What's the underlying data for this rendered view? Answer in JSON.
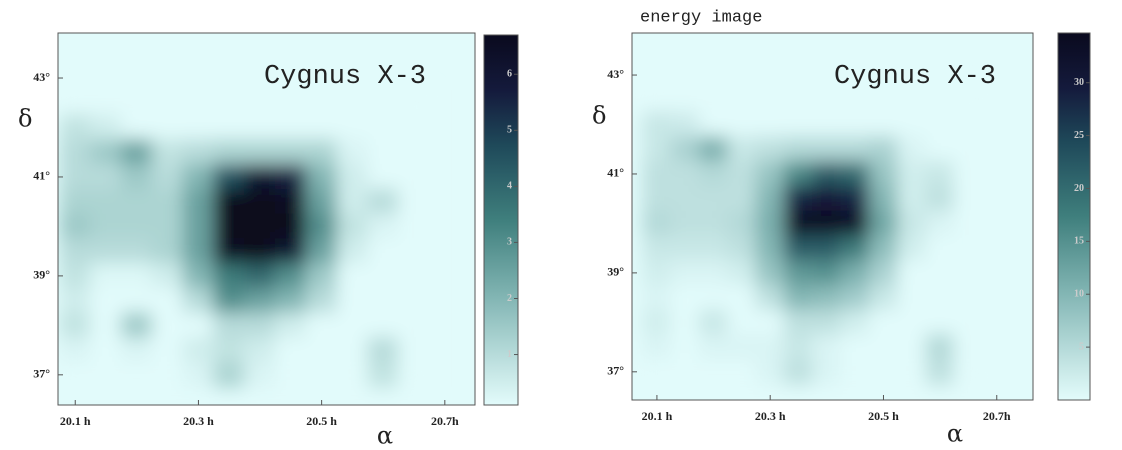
{
  "chart_data": [
    {
      "type": "heatmap",
      "annotation": "Cygnus X-3",
      "xlabel": "α",
      "ylabel": "δ",
      "x": [
        20.1,
        20.15,
        20.2,
        20.25,
        20.3,
        20.35,
        20.4,
        20.45,
        20.5,
        20.55,
        20.6,
        20.65
      ],
      "y": [
        42.5,
        42,
        41.5,
        41,
        40.5,
        40,
        39.5,
        39,
        38.5,
        38,
        37.5,
        37
      ],
      "values": [
        [
          0,
          0,
          0,
          0,
          0,
          0,
          0,
          0,
          0,
          0,
          0,
          0
        ],
        [
          0.8,
          0.5,
          0,
          0,
          0,
          0,
          0,
          0,
          0,
          0,
          0,
          0
        ],
        [
          1,
          1.5,
          2.5,
          0.8,
          1,
          1.2,
          1.2,
          1.2,
          1.2,
          0.3,
          0,
          0
        ],
        [
          1,
          1,
          1.5,
          1,
          2,
          4.5,
          6,
          5.5,
          2,
          0.5,
          0,
          0
        ],
        [
          1.2,
          1.2,
          1.2,
          1.2,
          2.5,
          7,
          7,
          6.5,
          2.5,
          0.5,
          1,
          0
        ],
        [
          1.5,
          1.2,
          1.2,
          1.2,
          2.5,
          7,
          7,
          7,
          3,
          0.8,
          0.3,
          0
        ],
        [
          1,
          1,
          1,
          1.2,
          2.5,
          6.5,
          7,
          6,
          2.5,
          0.5,
          0,
          0
        ],
        [
          0.8,
          0.2,
          0.2,
          0.5,
          2,
          3.5,
          4,
          3,
          1.5,
          0,
          0,
          0
        ],
        [
          0.5,
          0,
          0,
          0,
          1,
          3,
          2.5,
          2,
          1,
          0,
          0,
          0
        ],
        [
          0.8,
          0,
          1.5,
          0,
          0,
          1,
          1,
          0.5,
          0,
          0,
          0,
          0
        ],
        [
          0.3,
          0,
          0.3,
          0,
          0.5,
          0.8,
          0.5,
          0,
          0,
          0,
          1,
          0
        ],
        [
          0,
          0,
          0,
          0,
          0.3,
          1.2,
          0.3,
          0,
          0,
          0,
          0.8,
          0
        ]
      ],
      "xlim": [
        20.072,
        20.749
      ],
      "ylim": [
        36.39,
        43.91
      ],
      "xticks": [
        {
          "value": 20.1,
          "label": "20.1 h"
        },
        {
          "value": 20.3,
          "label": "20.3 h"
        },
        {
          "value": 20.5,
          "label": "20.5 h"
        },
        {
          "value": 20.7,
          "label": "20.7h"
        }
      ],
      "yticks": [
        {
          "value": 37,
          "label": "37°"
        },
        {
          "value": 39,
          "label": "39°"
        },
        {
          "value": 41,
          "label": "41°"
        },
        {
          "value": 43,
          "label": "43°"
        }
      ],
      "clim": [
        0.1,
        6.7
      ],
      "cticks": [
        1,
        2,
        3,
        4,
        5,
        6
      ]
    },
    {
      "type": "heatmap",
      "title": "energy image",
      "annotation": "Cygnus X-3",
      "xlabel": "α",
      "ylabel": "δ",
      "x": [
        20.1,
        20.15,
        20.2,
        20.25,
        20.3,
        20.35,
        20.4,
        20.45,
        20.5,
        20.55,
        20.6,
        20.65
      ],
      "y": [
        42.5,
        42,
        41.5,
        41,
        40.5,
        40,
        39.5,
        39,
        38.5,
        38,
        37.5,
        37
      ],
      "values": [
        [
          0,
          0,
          0,
          0,
          0,
          0,
          0,
          0,
          0,
          0,
          0,
          0
        ],
        [
          3,
          2.5,
          0,
          0,
          0,
          0,
          0,
          0,
          0,
          0,
          0,
          0
        ],
        [
          3,
          6,
          11,
          3,
          4,
          5,
          5,
          5,
          6,
          1,
          0,
          0
        ],
        [
          4,
          4,
          5,
          4,
          8,
          16,
          22,
          20,
          8,
          2,
          3,
          0
        ],
        [
          4,
          4,
          4,
          4,
          10,
          28,
          30,
          28,
          10,
          2,
          4,
          0
        ],
        [
          5,
          4,
          4,
          5,
          11,
          34,
          34,
          33,
          12,
          3,
          1,
          0
        ],
        [
          3,
          3,
          3,
          4,
          10,
          22,
          22,
          18,
          9,
          2,
          0,
          0
        ],
        [
          2,
          1,
          1,
          2,
          8,
          14,
          15,
          11,
          6,
          0,
          0,
          0
        ],
        [
          1,
          0,
          0,
          0,
          4,
          10,
          9,
          7,
          3,
          0,
          0,
          0
        ],
        [
          2,
          0,
          3,
          0,
          0,
          4,
          4,
          2,
          0,
          0,
          0,
          0
        ],
        [
          1,
          0,
          1,
          1,
          1,
          3,
          1,
          0,
          0,
          0,
          5,
          0
        ],
        [
          0,
          0,
          0,
          0,
          1,
          4,
          1,
          0,
          0,
          0,
          4,
          0
        ]
      ],
      "xlim": [
        20.056,
        20.764
      ],
      "ylim": [
        36.43,
        43.85
      ],
      "xticks": [
        {
          "value": 20.1,
          "label": "20.1 h"
        },
        {
          "value": 20.3,
          "label": "20.3 h"
        },
        {
          "value": 20.5,
          "label": "20.5 h"
        },
        {
          "value": 20.7,
          "label": "20.7h"
        }
      ],
      "yticks": [
        {
          "value": 37,
          "label": "37°"
        },
        {
          "value": 39,
          "label": "39°"
        },
        {
          "value": 41,
          "label": "41°"
        },
        {
          "value": 43,
          "label": "43°"
        }
      ],
      "clim": [
        0,
        34.7
      ],
      "cticks": [
        5,
        10,
        15,
        20,
        25,
        30
      ]
    }
  ]
}
